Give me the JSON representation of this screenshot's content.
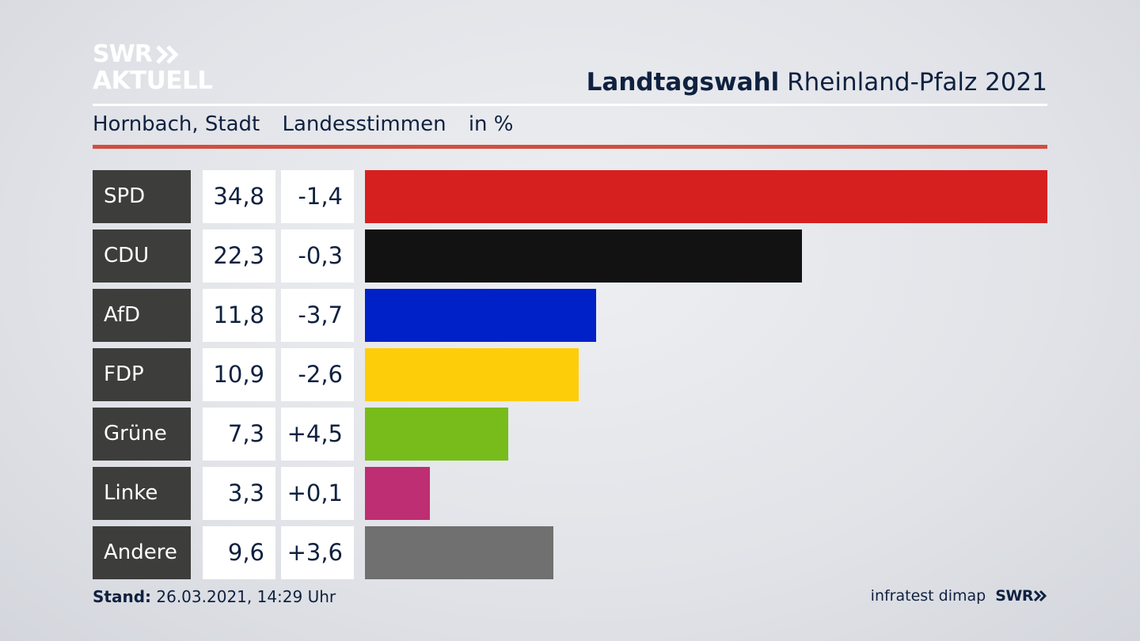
{
  "logo": {
    "line1": "SWR",
    "line2": "AKTUELL"
  },
  "title": {
    "bold": "Landtagswahl",
    "rest": "Rheinland-Pfalz 2021"
  },
  "subtitle": {
    "place": "Hornbach, Stadt",
    "type": "Landesstimmen",
    "unit": "in %"
  },
  "footer": {
    "stand_label": "Stand:",
    "stand_value": "26.03.2021, 14:29 Uhr",
    "source": "infratest dimap",
    "brand": "SWR"
  },
  "chart_data": {
    "type": "bar",
    "orientation": "horizontal",
    "categories": [
      "SPD",
      "CDU",
      "AfD",
      "FDP",
      "Grüne",
      "Linke",
      "Andere"
    ],
    "values": [
      34.8,
      22.3,
      11.8,
      10.9,
      7.3,
      3.3,
      9.6
    ],
    "value_labels": [
      "34,8",
      "22,3",
      "11,8",
      "10,9",
      "7,3",
      "3,3",
      "9,6"
    ],
    "change_labels": [
      "-1,4",
      "-0,3",
      "-3,7",
      "-2,6",
      "+4,5",
      "+0,1",
      "+3,6"
    ],
    "changes": [
      -1.4,
      -0.3,
      -3.7,
      -2.6,
      4.5,
      0.1,
      3.6
    ],
    "colors": [
      "#d62020",
      "#121212",
      "#0021c8",
      "#fecd0a",
      "#78bc1b",
      "#bd2e73",
      "#707070"
    ],
    "xlim": [
      0,
      34.8
    ]
  }
}
